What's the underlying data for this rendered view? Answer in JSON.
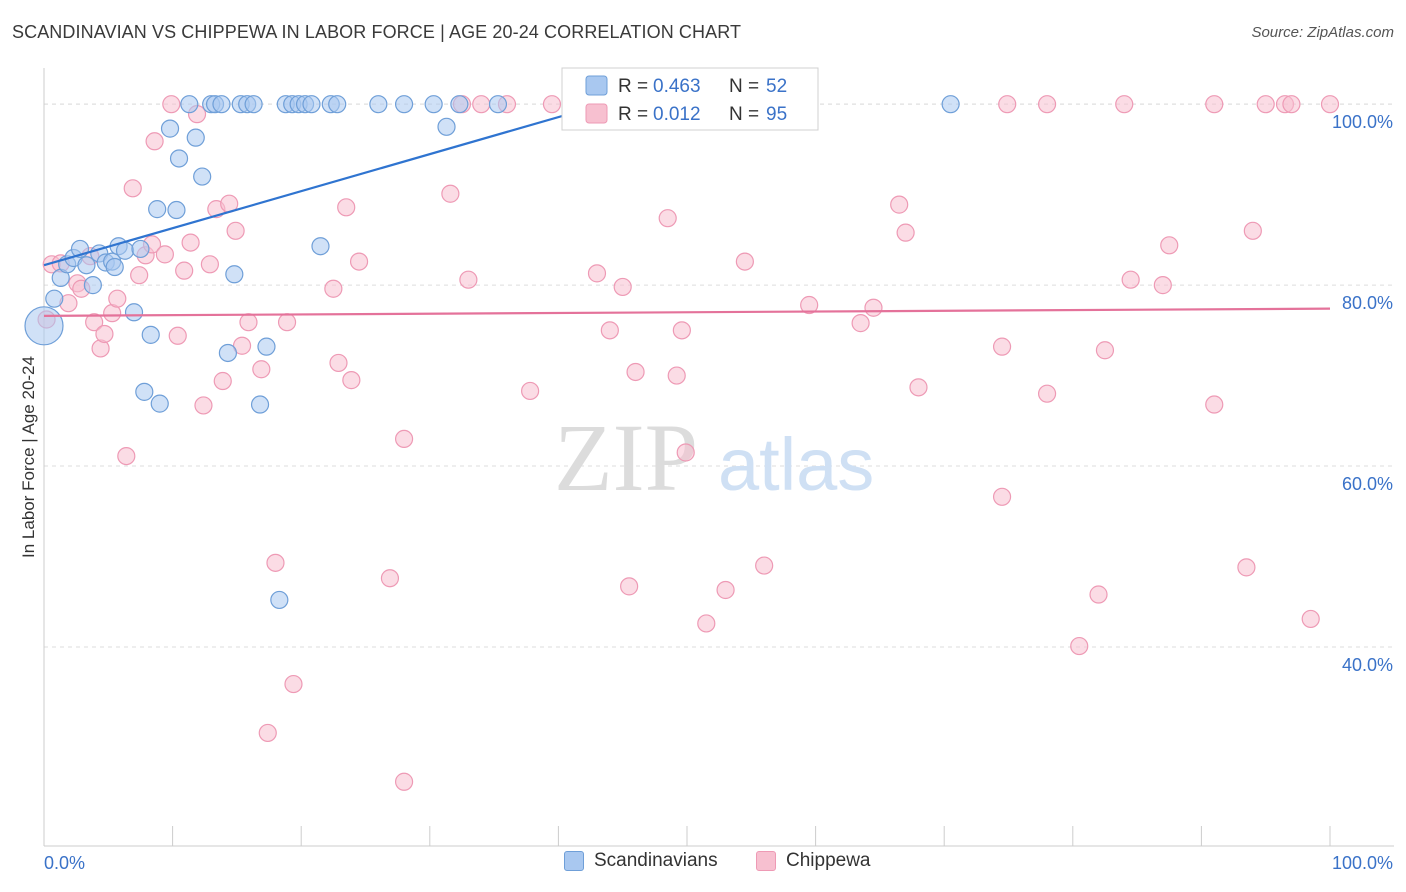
{
  "title": "SCANDINAVIAN VS CHIPPEWA IN LABOR FORCE | AGE 20-24 CORRELATION CHART",
  "source": "Source: ZipAtlas.com",
  "watermark": {
    "zip": "ZIP",
    "atlas": "atlas"
  },
  "colors": {
    "blue_fill": "#a9c8f0",
    "blue_stroke": "#6f9fd8",
    "blue_line": "#2f74d0",
    "pink_fill": "#f7c0d0",
    "pink_stroke": "#ee9ab5",
    "pink_line": "#e4729a",
    "axis_text_blue": "#3a72c8",
    "grid": "#dddddd"
  },
  "legend_box": {
    "rows": [
      {
        "r_label": "R =",
        "r_value": "0.463",
        "n_label": "N =",
        "n_value": "52"
      },
      {
        "r_label": "R =",
        "r_value": "0.012",
        "n_label": "N =",
        "n_value": "95"
      }
    ]
  },
  "chart_data": {
    "type": "scatter",
    "title": "SCANDINAVIAN VS CHIPPEWA IN LABOR FORCE | AGE 20-24 CORRELATION CHART",
    "xlabel": "",
    "ylabel": "In Labor Force | Age 20-24",
    "xlim": [
      0,
      100
    ],
    "ylim": [
      18,
      104
    ],
    "x_tick_labels": [
      "0.0%",
      "100.0%"
    ],
    "y_ticks": [
      40,
      60,
      80,
      100
    ],
    "y_tick_labels": [
      "40.0%",
      "60.0%",
      "80.0%",
      "100.0%"
    ],
    "grid": true,
    "legend_position": "top-center",
    "series": [
      {
        "name": "Scandinavians",
        "r": 0.463,
        "n": 52,
        "trend": {
          "x": [
            0,
            43
          ],
          "y": [
            82.2,
            99.8
          ]
        },
        "points": [
          {
            "x": 0.0,
            "y": 75.5,
            "big": true
          },
          {
            "x": 0.8,
            "y": 78.5
          },
          {
            "x": 1.3,
            "y": 80.8
          },
          {
            "x": 1.8,
            "y": 82.3
          },
          {
            "x": 2.3,
            "y": 83.0
          },
          {
            "x": 2.8,
            "y": 84.0
          },
          {
            "x": 3.3,
            "y": 82.2
          },
          {
            "x": 3.8,
            "y": 80.0
          },
          {
            "x": 4.3,
            "y": 83.5
          },
          {
            "x": 4.8,
            "y": 82.5
          },
          {
            "x": 5.3,
            "y": 82.6
          },
          {
            "x": 5.5,
            "y": 82.0
          },
          {
            "x": 5.8,
            "y": 84.3
          },
          {
            "x": 6.3,
            "y": 83.8
          },
          {
            "x": 7.0,
            "y": 77.0
          },
          {
            "x": 7.5,
            "y": 84.0
          },
          {
            "x": 7.8,
            "y": 68.2
          },
          {
            "x": 8.3,
            "y": 74.5
          },
          {
            "x": 8.8,
            "y": 88.4
          },
          {
            "x": 9.0,
            "y": 66.9
          },
          {
            "x": 9.8,
            "y": 97.3
          },
          {
            "x": 10.3,
            "y": 88.3
          },
          {
            "x": 10.5,
            "y": 94.0
          },
          {
            "x": 11.3,
            "y": 100.0
          },
          {
            "x": 11.8,
            "y": 96.3
          },
          {
            "x": 12.3,
            "y": 92.0
          },
          {
            "x": 13.0,
            "y": 100.0
          },
          {
            "x": 13.3,
            "y": 100.0
          },
          {
            "x": 13.8,
            "y": 100.0
          },
          {
            "x": 14.3,
            "y": 72.5
          },
          {
            "x": 14.8,
            "y": 81.2
          },
          {
            "x": 15.3,
            "y": 100.0
          },
          {
            "x": 15.8,
            "y": 100.0
          },
          {
            "x": 16.3,
            "y": 100.0
          },
          {
            "x": 16.8,
            "y": 66.8
          },
          {
            "x": 17.3,
            "y": 73.2
          },
          {
            "x": 18.3,
            "y": 45.2
          },
          {
            "x": 18.8,
            "y": 100.0
          },
          {
            "x": 19.3,
            "y": 100.0
          },
          {
            "x": 19.8,
            "y": 100.0
          },
          {
            "x": 20.3,
            "y": 100.0
          },
          {
            "x": 20.8,
            "y": 100.0
          },
          {
            "x": 21.5,
            "y": 84.3
          },
          {
            "x": 22.3,
            "y": 100.0
          },
          {
            "x": 22.8,
            "y": 100.0
          },
          {
            "x": 26.0,
            "y": 100.0
          },
          {
            "x": 28.0,
            "y": 100.0
          },
          {
            "x": 30.3,
            "y": 100.0
          },
          {
            "x": 31.3,
            "y": 97.5
          },
          {
            "x": 32.3,
            "y": 100.0
          },
          {
            "x": 35.3,
            "y": 100.0
          },
          {
            "x": 70.5,
            "y": 100.0
          }
        ]
      },
      {
        "name": "Chippewa",
        "r": 0.012,
        "n": 95,
        "trend": {
          "x": [
            0,
            100
          ],
          "y": [
            76.6,
            77.4
          ]
        },
        "points": [
          {
            "x": 0.2,
            "y": 76.2
          },
          {
            "x": 0.6,
            "y": 82.3
          },
          {
            "x": 1.3,
            "y": 82.4
          },
          {
            "x": 1.9,
            "y": 78.0
          },
          {
            "x": 2.6,
            "y": 80.2
          },
          {
            "x": 2.9,
            "y": 79.6
          },
          {
            "x": 3.6,
            "y": 83.2
          },
          {
            "x": 3.9,
            "y": 75.9
          },
          {
            "x": 4.4,
            "y": 73.0
          },
          {
            "x": 4.7,
            "y": 74.6
          },
          {
            "x": 5.3,
            "y": 76.9
          },
          {
            "x": 5.7,
            "y": 78.5
          },
          {
            "x": 6.4,
            "y": 61.1
          },
          {
            "x": 6.9,
            "y": 90.7
          },
          {
            "x": 7.4,
            "y": 81.1
          },
          {
            "x": 7.9,
            "y": 83.3
          },
          {
            "x": 8.4,
            "y": 84.5
          },
          {
            "x": 8.6,
            "y": 95.9
          },
          {
            "x": 9.4,
            "y": 83.4
          },
          {
            "x": 9.9,
            "y": 100.0
          },
          {
            "x": 10.4,
            "y": 74.4
          },
          {
            "x": 10.9,
            "y": 81.6
          },
          {
            "x": 11.4,
            "y": 84.7
          },
          {
            "x": 11.9,
            "y": 98.9
          },
          {
            "x": 12.4,
            "y": 66.7
          },
          {
            "x": 12.9,
            "y": 82.3
          },
          {
            "x": 13.4,
            "y": 88.4
          },
          {
            "x": 13.9,
            "y": 69.4
          },
          {
            "x": 14.4,
            "y": 89.0
          },
          {
            "x": 14.9,
            "y": 86.0
          },
          {
            "x": 15.4,
            "y": 73.3
          },
          {
            "x": 15.9,
            "y": 75.9
          },
          {
            "x": 16.9,
            "y": 70.7
          },
          {
            "x": 17.4,
            "y": 30.5
          },
          {
            "x": 18.0,
            "y": 49.3
          },
          {
            "x": 18.9,
            "y": 75.9
          },
          {
            "x": 19.4,
            "y": 35.9
          },
          {
            "x": 22.5,
            "y": 79.6
          },
          {
            "x": 22.9,
            "y": 71.4
          },
          {
            "x": 23.5,
            "y": 88.6
          },
          {
            "x": 23.9,
            "y": 69.5
          },
          {
            "x": 24.5,
            "y": 82.6
          },
          {
            "x": 26.9,
            "y": 47.6
          },
          {
            "x": 28.0,
            "y": 63.0
          },
          {
            "x": 28.0,
            "y": 25.1
          },
          {
            "x": 31.6,
            "y": 90.1
          },
          {
            "x": 32.5,
            "y": 100.0
          },
          {
            "x": 33.0,
            "y": 80.6
          },
          {
            "x": 34.0,
            "y": 100.0
          },
          {
            "x": 36.0,
            "y": 100.0
          },
          {
            "x": 37.8,
            "y": 68.3
          },
          {
            "x": 39.5,
            "y": 100.0
          },
          {
            "x": 42.0,
            "y": 100.0
          },
          {
            "x": 43.0,
            "y": 81.3
          },
          {
            "x": 44.0,
            "y": 75.0
          },
          {
            "x": 45.0,
            "y": 79.8
          },
          {
            "x": 45.5,
            "y": 46.7
          },
          {
            "x": 46.0,
            "y": 70.4
          },
          {
            "x": 47.5,
            "y": 100.0
          },
          {
            "x": 48.5,
            "y": 87.4
          },
          {
            "x": 49.2,
            "y": 70.0
          },
          {
            "x": 49.6,
            "y": 75.0
          },
          {
            "x": 49.9,
            "y": 61.5
          },
          {
            "x": 51.5,
            "y": 42.6
          },
          {
            "x": 53.0,
            "y": 46.3
          },
          {
            "x": 54.5,
            "y": 82.6
          },
          {
            "x": 56.0,
            "y": 49.0
          },
          {
            "x": 59.5,
            "y": 100.0
          },
          {
            "x": 59.5,
            "y": 77.8
          },
          {
            "x": 63.5,
            "y": 75.8
          },
          {
            "x": 64.5,
            "y": 77.5
          },
          {
            "x": 68.0,
            "y": 68.7
          },
          {
            "x": 66.5,
            "y": 88.9
          },
          {
            "x": 67.0,
            "y": 85.8
          },
          {
            "x": 74.5,
            "y": 73.2
          },
          {
            "x": 74.9,
            "y": 100.0
          },
          {
            "x": 74.5,
            "y": 56.6
          },
          {
            "x": 78.0,
            "y": 100.0
          },
          {
            "x": 78.0,
            "y": 68.0
          },
          {
            "x": 80.5,
            "y": 40.1
          },
          {
            "x": 82.0,
            "y": 45.8
          },
          {
            "x": 82.5,
            "y": 72.8
          },
          {
            "x": 84.0,
            "y": 100.0
          },
          {
            "x": 84.5,
            "y": 80.6
          },
          {
            "x": 87.0,
            "y": 80.0
          },
          {
            "x": 87.5,
            "y": 84.4
          },
          {
            "x": 91.0,
            "y": 100.0
          },
          {
            "x": 91.0,
            "y": 66.8
          },
          {
            "x": 93.5,
            "y": 48.8
          },
          {
            "x": 94.0,
            "y": 86.0
          },
          {
            "x": 95.0,
            "y": 100.0
          },
          {
            "x": 96.5,
            "y": 100.0
          },
          {
            "x": 97.0,
            "y": 100.0
          },
          {
            "x": 98.5,
            "y": 43.1
          },
          {
            "x": 100.0,
            "y": 100.0
          }
        ]
      }
    ]
  }
}
